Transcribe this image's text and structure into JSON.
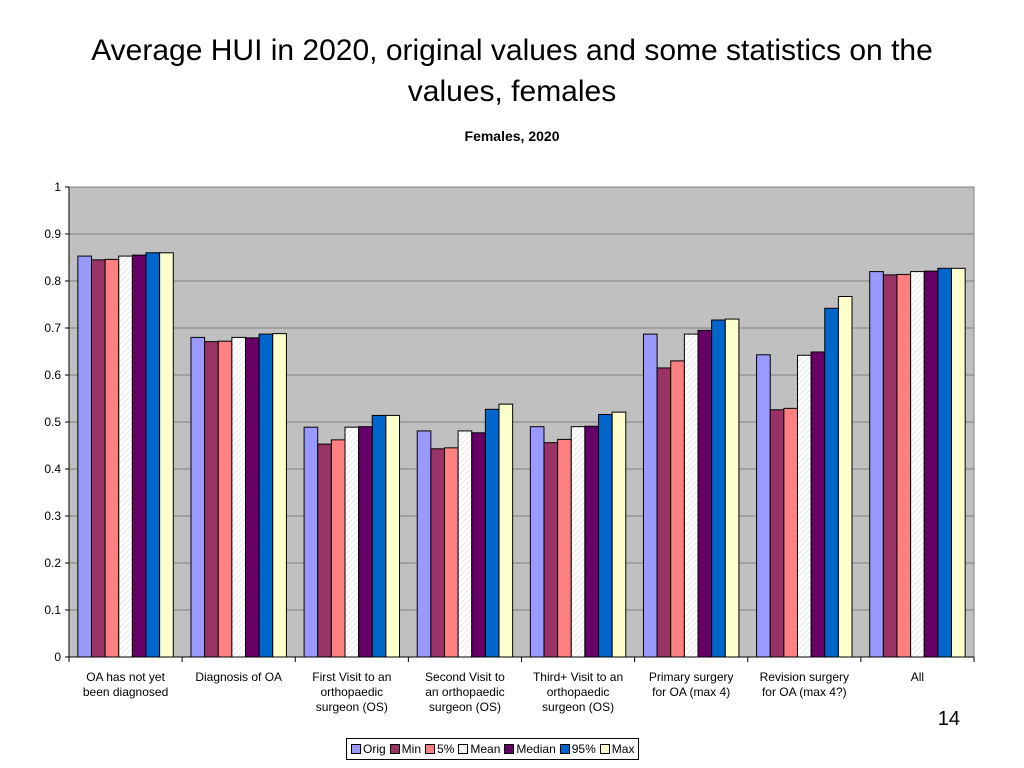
{
  "slide": {
    "title": "Average HUI in 2020, original values and some statistics on the values, females",
    "page_number": "14"
  },
  "chart_data": {
    "type": "bar",
    "title": "Females, 2020",
    "xlabel": "",
    "ylabel": "",
    "ylim": [
      0,
      1
    ],
    "yticks": [
      "0",
      "0.1",
      "0.2",
      "0.3",
      "0.4",
      "0.5",
      "0.6",
      "0.7",
      "0.8",
      "0.9",
      "1"
    ],
    "grid": true,
    "legend_position": "bottom",
    "categories": [
      "OA has not yet been diagnosed",
      "Diagnosis of OA",
      "First Visit to an orthopaedic surgeon (OS)",
      "Second Visit to an orthopaedic surgeon (OS)",
      "Third+ Visit to an orthopaedic surgeon (OS)",
      "Primary surgery for OA (max 4)",
      "Revision surgery for OA (max 4?)",
      "All"
    ],
    "category_label_lines": [
      [
        "OA has not yet",
        "been diagnosed"
      ],
      [
        "Diagnosis of OA"
      ],
      [
        "First Visit to an",
        "orthopaedic",
        "surgeon (OS)"
      ],
      [
        "Second Visit to",
        "an orthopaedic",
        "surgeon (OS)"
      ],
      [
        "Third+ Visit to an",
        "orthopaedic",
        "surgeon (OS)"
      ],
      [
        "Primary surgery",
        "for OA (max 4)"
      ],
      [
        "Revision surgery",
        "for OA (max 4?)"
      ],
      [
        "All"
      ]
    ],
    "series": [
      {
        "name": "Orig",
        "color": "#9999ff",
        "values": [
          0.853,
          0.68,
          0.489,
          0.481,
          0.49,
          0.687,
          0.643,
          0.82
        ]
      },
      {
        "name": "Min",
        "color": "#993366",
        "values": [
          0.845,
          0.671,
          0.453,
          0.443,
          0.456,
          0.615,
          0.526,
          0.813
        ]
      },
      {
        "name": "5%",
        "color": "#ff8080",
        "values": [
          0.846,
          0.672,
          0.462,
          0.445,
          0.463,
          0.63,
          0.529,
          0.814
        ]
      },
      {
        "name": "Mean",
        "color": "#ffffff",
        "values": [
          0.853,
          0.68,
          0.489,
          0.481,
          0.49,
          0.687,
          0.642,
          0.82
        ]
      },
      {
        "name": "Median",
        "color": "#660066",
        "values": [
          0.855,
          0.679,
          0.49,
          0.477,
          0.491,
          0.695,
          0.649,
          0.821
        ]
      },
      {
        "name": "95%",
        "color": "#0066cc",
        "values": [
          0.86,
          0.687,
          0.514,
          0.527,
          0.516,
          0.717,
          0.742,
          0.827
        ]
      },
      {
        "name": "Max",
        "color": "#ffffcc",
        "values": [
          0.86,
          0.688,
          0.514,
          0.538,
          0.521,
          0.719,
          0.767,
          0.827
        ]
      }
    ],
    "colors": {
      "plot_background": "#c0c0c0",
      "gridline": "#808080"
    }
  }
}
